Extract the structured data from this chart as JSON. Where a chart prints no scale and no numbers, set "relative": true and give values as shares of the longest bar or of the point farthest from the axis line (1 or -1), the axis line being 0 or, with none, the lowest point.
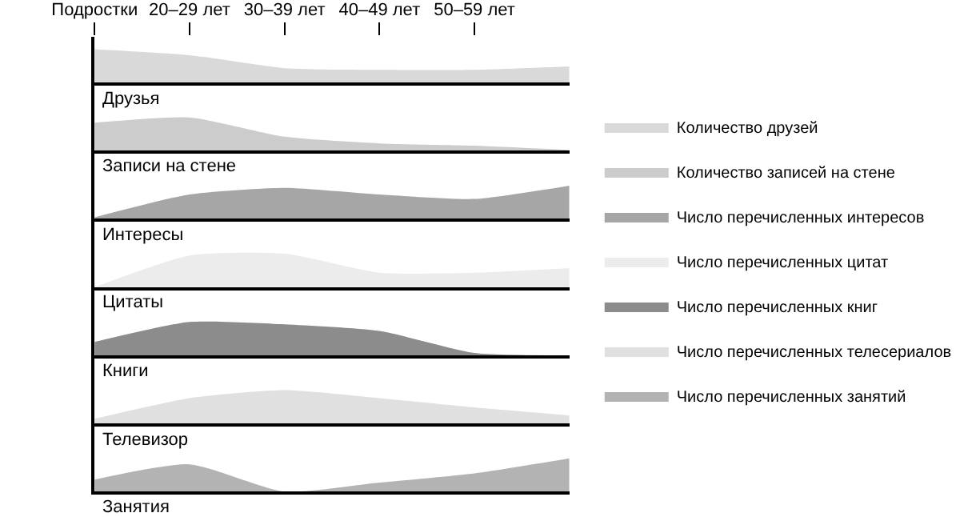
{
  "chart_data": [
    {
      "type": "area",
      "xlabel": "Друзья",
      "categories": [
        "Подростки",
        "20–29 лет",
        "30–39 лет",
        "40–49 лет",
        "50–59 лет",
        null
      ],
      "relative": true,
      "tick_labels": "x",
      "legend": "right",
      "series": [
        {
          "name": "Количество друзей",
          "color": "#d9d9d9",
          "values": [
            1,
            0.82,
            0.43,
            0.38,
            0.38,
            0.48
          ]
        }
      ]
    },
    {
      "type": "area",
      "xlabel": "Записи на стене",
      "categories": [
        "Подростки",
        "20–29 лет",
        "30–39 лет",
        "40–49 лет",
        "50–59 лет",
        null
      ],
      "relative": true,
      "tick_labels": false,
      "legend": "right",
      "series": [
        {
          "name": "Количество записей на стене",
          "color": "#cccccc",
          "values": [
            0.84,
            1,
            0.42,
            0.22,
            0.15,
            0.02
          ]
        }
      ]
    },
    {
      "type": "area",
      "xlabel": "Интересы",
      "categories": [
        "Подростки",
        "20–29 лет",
        "30–39 лет",
        "40–49 лет",
        "50–59 лет",
        null
      ],
      "relative": true,
      "tick_labels": false,
      "legend": "right",
      "series": [
        {
          "name": "Число перечисленных интересов",
          "color": "#a6a6a6",
          "values": [
            0.05,
            0.73,
            0.93,
            0.73,
            0.6,
            1
          ]
        }
      ]
    },
    {
      "type": "area",
      "xlabel": "Цитаты",
      "categories": [
        "Подростки",
        "20–29 лет",
        "30–39 лет",
        "40–49 лет",
        "50–59 лет",
        null
      ],
      "relative": true,
      "tick_labels": false,
      "legend": "right",
      "series": [
        {
          "name": "Число перечисленных цитат",
          "color": "#ececec",
          "values": [
            0,
            0.95,
            1,
            0.43,
            0.43,
            0.57
          ]
        }
      ]
    },
    {
      "type": "area",
      "xlabel": "Книги",
      "categories": [
        "Подростки",
        "20–29 лет",
        "30–39 лет",
        "40–49 лет",
        "50–59 лет",
        null
      ],
      "relative": true,
      "tick_labels": false,
      "legend": "right",
      "series": [
        {
          "name": "Число перечисленных книг",
          "color": "#8c8c8c",
          "values": [
            0.4,
            1,
            0.93,
            0.73,
            0.07,
            0
          ]
        }
      ]
    },
    {
      "type": "area",
      "xlabel": "Телевизор",
      "categories": [
        "Подростки",
        "20–29 лет",
        "30–39 лет",
        "40–49 лет",
        "50–59 лет",
        null
      ],
      "relative": true,
      "tick_labels": false,
      "legend": "right",
      "series": [
        {
          "name": "Число перечисленных телесериалов",
          "color": "#e0e0e0",
          "values": [
            0.14,
            0.76,
            1,
            0.76,
            0.48,
            0.24
          ]
        }
      ]
    },
    {
      "type": "area",
      "xlabel": "Занятия",
      "categories": [
        "Подростки",
        "20–29 лет",
        "30–39 лет",
        "40–49 лет",
        "50–59 лет",
        null
      ],
      "relative": true,
      "tick_labels": false,
      "legend": "right",
      "series": [
        {
          "name": "Число перечисленных занятий",
          "color": "#b3b3b3",
          "values": [
            0.36,
            0.82,
            0,
            0.27,
            0.55,
            1
          ]
        }
      ]
    }
  ]
}
